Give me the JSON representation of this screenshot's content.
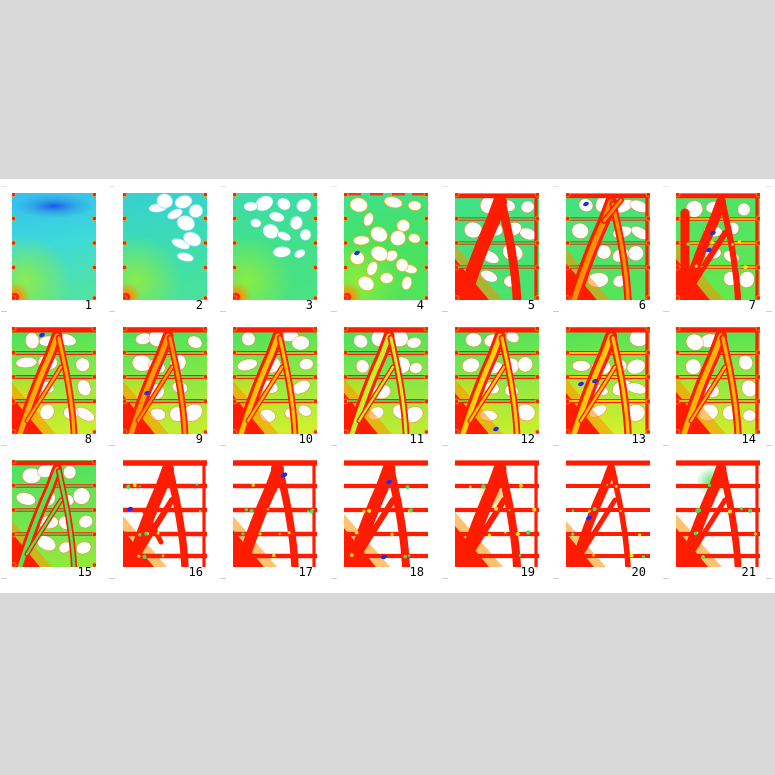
{
  "colors": {
    "page_background": "#ffffff",
    "band_color": "#d9d9d9",
    "colormap": [
      "#0020ff",
      "#00d0ff",
      "#3ee267",
      "#ffe000",
      "#ff9000",
      "#ff1c00"
    ]
  },
  "grid": {
    "rows": 3,
    "cols": 7,
    "panel_count": 21
  },
  "panels": [
    {
      "label": "1",
      "mode": "field",
      "bg": [
        "#35bdf2",
        "#3cd9da",
        "#4fe3a6"
      ],
      "topband": 1,
      "holes": 0,
      "seed": 5
    },
    {
      "label": "2",
      "mode": "field",
      "bg": [
        "#37cfd4",
        "#3bdcb4",
        "#47e19d"
      ],
      "holes": 9,
      "region": "upperright",
      "holeRim": "#7adefa",
      "seed": 23
    },
    {
      "label": "3",
      "mode": "field",
      "bg": [
        "#3bdcae",
        "#41e08c",
        "#49e284"
      ],
      "holes": 12,
      "region": "upper",
      "holeRim": "#4fd9c0",
      "seed": 37
    },
    {
      "label": "4",
      "mode": "field",
      "bg": [
        "#3fe08e",
        "#45e264",
        "#4fe45a"
      ],
      "holes": 18,
      "region": "all",
      "holeRim": "#ffab00",
      "seed": 43,
      "blue": [
        [
          13,
          60
        ]
      ],
      "topred": 1
    },
    {
      "label": "5",
      "mode": "truss",
      "bgc": [
        "#3fe18a",
        "#49e36c"
      ],
      "holes": 11,
      "legW": 14,
      "rightCol": 1,
      "floorW": 3.2,
      "floorCore": "#42e15c",
      "wedge": 1.2,
      "seed": 53
    },
    {
      "label": "6",
      "mode": "truss",
      "bgc": [
        "#41e283",
        "#55e55a"
      ],
      "holes": 12,
      "legW": 12,
      "legCore": "#ff9000",
      "split": 1,
      "rightCol": 1,
      "floorW": 3.2,
      "floorCore": "#42e15c",
      "blue": [
        [
          20,
          11
        ]
      ],
      "wedge": 1.1,
      "seed": 67
    },
    {
      "label": "7",
      "mode": "truss",
      "bgc": [
        "#49e36c",
        "#64e74b"
      ],
      "holes": 9,
      "legW": 10,
      "braceW": 6,
      "leftCol": 1,
      "rightCol": 1,
      "floorW": 3.6,
      "floorCore": "#ffd800",
      "blue": [
        [
          37,
          40
        ],
        [
          33,
          57
        ]
      ],
      "wedge": 1.2,
      "greenDots": 8,
      "seed": 71
    },
    {
      "label": "8",
      "mode": "truss",
      "bgc": [
        "#43e25e",
        "#c8ee30"
      ],
      "warm": 1,
      "holes": 11,
      "legW": 11,
      "legCore": "#ffae00",
      "braceW": 5,
      "floorW": 4,
      "floorCore": "#4ae05c",
      "blue": [
        [
          30,
          8
        ]
      ],
      "wedge": 1.1,
      "seed": 83
    },
    {
      "label": "9",
      "mode": "truss",
      "bgc": [
        "#43e25e",
        "#c0ed30"
      ],
      "warm": 1,
      "holes": 11,
      "legW": 11,
      "legCore": "#ff9a00",
      "braceW": 5,
      "floorW": 4,
      "floorCore": "#6ce24e",
      "blue": [
        [
          24,
          66
        ]
      ],
      "wedge": 1.15,
      "seed": 97
    },
    {
      "label": "10",
      "mode": "truss",
      "bgc": [
        "#45e25c",
        "#cdef2e"
      ],
      "warm": 1,
      "holes": 11,
      "legW": 11,
      "legCore": "#ffc000",
      "braceW": 5,
      "floorW": 4,
      "floorCore": "#8fe63c",
      "wedge": 1.15,
      "seed": 101
    },
    {
      "label": "11",
      "mode": "truss",
      "bgc": [
        "#44e15e",
        "#b9ec32"
      ],
      "warm": 1,
      "holes": 11,
      "legW": 11,
      "legCore": "#c9ef28",
      "braceW": 5,
      "floorW": 4,
      "floorCore": "#4ae05c",
      "wedge": 1.2,
      "seed": 113
    },
    {
      "label": "12",
      "mode": "truss",
      "bgc": [
        "#44e15e",
        "#c4ee30"
      ],
      "warm": 1,
      "holes": 11,
      "legW": 11,
      "legCore": "#ffd400",
      "braceW": 5,
      "floorW": 4,
      "floorCore": "#55e14e",
      "blue": [
        [
          41,
          102
        ]
      ],
      "wedge": 1.2,
      "seed": 127
    },
    {
      "label": "13",
      "mode": "truss",
      "bgc": [
        "#48e25a",
        "#d2ef2c"
      ],
      "warm": 1,
      "holes": 10,
      "legW": 12,
      "legCore": "#ffc800",
      "braceW": 5,
      "floorW": 4,
      "floorCore": "#ffe000",
      "blue": [
        [
          15,
          57
        ],
        [
          29,
          54
        ]
      ],
      "wedge": 1.2,
      "rightCol": 1,
      "seed": 131
    },
    {
      "label": "14",
      "mode": "truss",
      "bgc": [
        "#48e25a",
        "#c9ee2e"
      ],
      "warm": 1,
      "holes": 10,
      "legW": 12,
      "legCore": "#ffb400",
      "braceW": 5,
      "floorW": 4,
      "floorCore": "#9fe838",
      "wedge": 1.25,
      "rightCol": 1,
      "seed": 139
    },
    {
      "label": "15",
      "mode": "truss",
      "bgc": [
        "#4ae164",
        "#8fe83c"
      ],
      "holes": 13,
      "legW": 10,
      "legCore": "#55e24e",
      "braceW": 5,
      "floorW": 3.4,
      "floorCore": "#4ae05c",
      "wedge": 1,
      "seed": 151
    },
    {
      "label": "16",
      "mode": "truss",
      "holes": 0,
      "legW": 12,
      "braceW": 6,
      "lowfloor": 1,
      "floorW": 4.5,
      "greenDots": 13,
      "blue": [
        [
          7,
          49
        ]
      ],
      "wedge": 1.1,
      "extra": [
        [
          "M 22,52 L 38,82",
          5
        ]
      ],
      "rightCol": 1,
      "seed": 157
    },
    {
      "label": "17",
      "mode": "truss",
      "holes": 0,
      "legW": 12,
      "lowfloor": 1,
      "floorW": 4.5,
      "greenDots": 12,
      "blue": [
        [
          51,
          15,
          3.5
        ]
      ],
      "wedge": 1.1,
      "extra": [
        [
          "M 41,30 L 41,8",
          6
        ]
      ],
      "rightCol": 1,
      "seed": 163
    },
    {
      "label": "18",
      "mode": "truss",
      "holes": 0,
      "legW": 13,
      "braceW": 6,
      "lowfloor": 1,
      "floorW": 4.2,
      "greenDots": 10,
      "blue": [
        [
          45,
          22
        ],
        [
          40,
          97
        ]
      ],
      "wedge": 1.15,
      "seed": 173
    },
    {
      "label": "19",
      "mode": "truss",
      "holes": 0,
      "legW": 13,
      "braceW": 6,
      "lowfloor": 1,
      "floorW": 4.2,
      "greenDots": 12,
      "patch": [
        38,
        34,
        15,
        "#ff9d00"
      ],
      "wedge": 1.2,
      "rightCol": 1,
      "seed": 181
    },
    {
      "label": "20",
      "mode": "truss",
      "holes": 0,
      "legW": 9,
      "braceW": 5,
      "lowfloor": 1,
      "floorW": 4,
      "greenDots": 11,
      "blue": [
        [
          23,
          58
        ]
      ],
      "wedge": 1,
      "seed": 191
    },
    {
      "label": "21",
      "mode": "truss",
      "holes": 0,
      "legW": 11,
      "braceW": 5,
      "lowfloor": 1,
      "floorW": 4.2,
      "greenDots": 12,
      "patch": [
        36,
        22,
        16,
        "#49e05c"
      ],
      "wedge": 1.15,
      "rightCol": 1,
      "seed": 197
    }
  ]
}
